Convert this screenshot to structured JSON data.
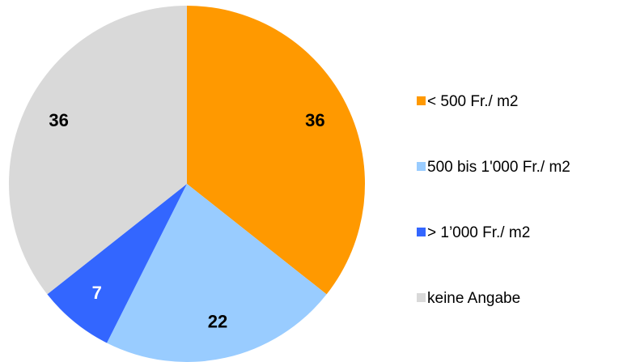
{
  "chart_data": {
    "type": "pie",
    "categories": [
      "< 500 Fr./ m2",
      "500 bis 1'000 Fr./ m2",
      "> 1’000 Fr./ m2",
      "keine Angabe"
    ],
    "values": [
      36,
      22,
      7,
      36
    ],
    "colors": [
      "#FF9900",
      "#99CCFF",
      "#3366FF",
      "#D9D9D9"
    ],
    "label_colors": [
      "#000000",
      "#000000",
      "#FFFFFF",
      "#000000"
    ],
    "legend": "right"
  }
}
